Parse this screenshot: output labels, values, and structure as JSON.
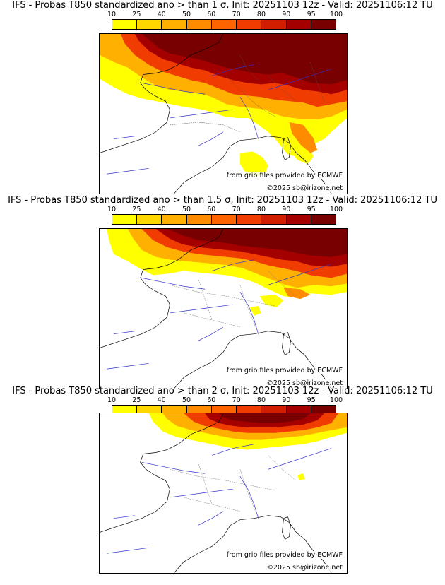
{
  "colorbar": {
    "ticks": [
      "10",
      "25",
      "40",
      "50",
      "60",
      "70",
      "80",
      "90",
      "95",
      "100"
    ],
    "colors": [
      "#ffff00",
      "#ffd700",
      "#ffb000",
      "#ff8c00",
      "#ff6400",
      "#f03c00",
      "#d21e00",
      "#a50000",
      "#780000"
    ]
  },
  "panels": [
    {
      "title": "IFS - Probas T850  standardized ano > than 1 σ, Init: 20251103 12z - Valid: 20251106:12 TU",
      "source_credit": "from grib files provided by ECMWF",
      "copyright": "©2025 sb@irizone.net"
    },
    {
      "title": "IFS - Probas T850  standardized ano > than 1.5 σ, Init: 20251103 12z - Valid: 20251106:12 TU",
      "source_credit": "from grib files provided by ECMWF",
      "copyright": "©2025 sb@irizone.net"
    },
    {
      "title": "IFS - Probas T850  standardized ano > than 2 σ, Init: 20251103 12z - Valid: 20251106:12 TU",
      "source_credit": "from grib files provided by ECMWF",
      "copyright": "©2025 sb@irizone.net"
    }
  ]
}
